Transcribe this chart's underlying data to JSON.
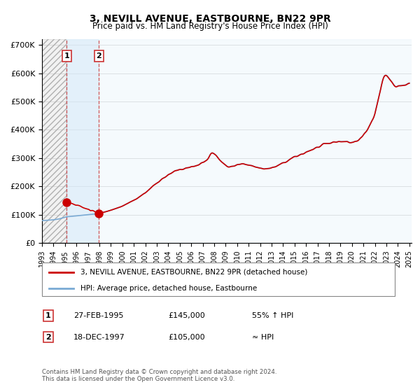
{
  "title": "3, NEVILL AVENUE, EASTBOURNE, BN22 9PR",
  "subtitle": "Price paid vs. HM Land Registry's House Price Index (HPI)",
  "sale1_label": "27-FEB-1995",
  "sale1_price": 145000,
  "sale1_text": "55% ↑ HPI",
  "sale2_label": "18-DEC-1997",
  "sale2_price": 105000,
  "sale2_text": "≈ HPI",
  "hpi_line_color": "#7aaad4",
  "price_line_color": "#cc0000",
  "marker_color": "#cc0000",
  "vline_color": "#cc3333",
  "shade_blue_color": "#d8eaf8",
  "ylim_max": 700000,
  "ylim_min": 0,
  "footnote": "Contains HM Land Registry data © Crown copyright and database right 2024.\nThis data is licensed under the Open Government Licence v3.0.",
  "legend_label1": "3, NEVILL AVENUE, EASTBOURNE, BN22 9PR (detached house)",
  "legend_label2": "HPI: Average price, detached house, Eastbourne",
  "background_color": "#ffffff",
  "grid_color": "#cccccc",
  "sale1_x": 1995.15,
  "sale2_x": 1997.96
}
